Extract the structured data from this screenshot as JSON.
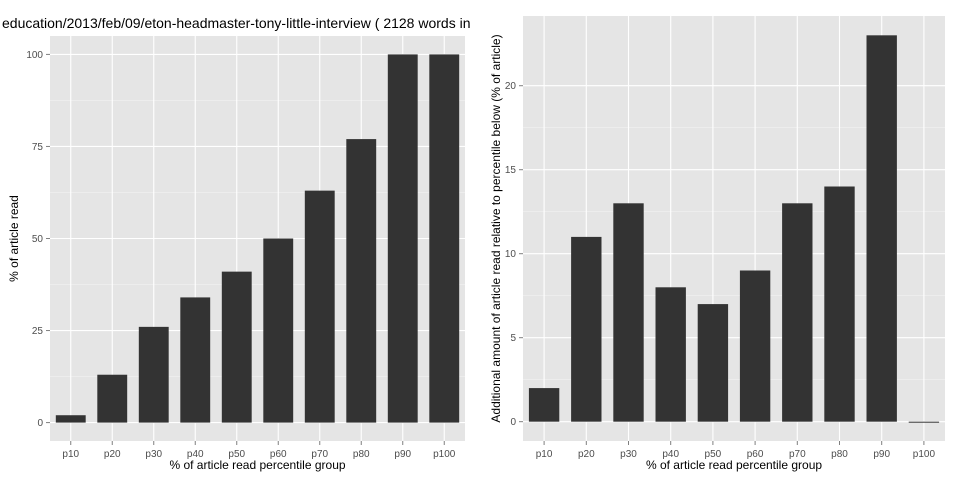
{
  "chart_data": [
    {
      "type": "bar",
      "title": "education/2013/feb/09/eton-headmaster-tony-little-interview ( 2128 words in",
      "xlabel": "% of article read percentile group",
      "ylabel": "% of article read",
      "categories": [
        "p10",
        "p20",
        "p30",
        "p40",
        "p50",
        "p60",
        "p70",
        "p80",
        "p90",
        "p100"
      ],
      "values": [
        2,
        13,
        26,
        34,
        41,
        50,
        63,
        77,
        100,
        100
      ],
      "ylim": [
        -5,
        105
      ],
      "yticks": [
        0,
        25,
        50,
        75,
        100
      ],
      "grid": true,
      "bar_color": "#333333",
      "panel_color": "#e5e5e5"
    },
    {
      "type": "bar",
      "title": "",
      "xlabel": "% of article read percentile group",
      "ylabel": "Additional amount of article read relative to percentile below (% of article)",
      "categories": [
        "p10",
        "p20",
        "p30",
        "p40",
        "p50",
        "p60",
        "p70",
        "p80",
        "p90",
        "p100"
      ],
      "values": [
        2,
        11,
        13,
        8,
        7,
        9,
        13,
        14,
        23,
        0
      ],
      "ylim": [
        -1.15,
        24.15
      ],
      "yticks": [
        0,
        5,
        10,
        15,
        20
      ],
      "grid": true,
      "bar_color": "#333333",
      "panel_color": "#e5e5e5"
    }
  ]
}
